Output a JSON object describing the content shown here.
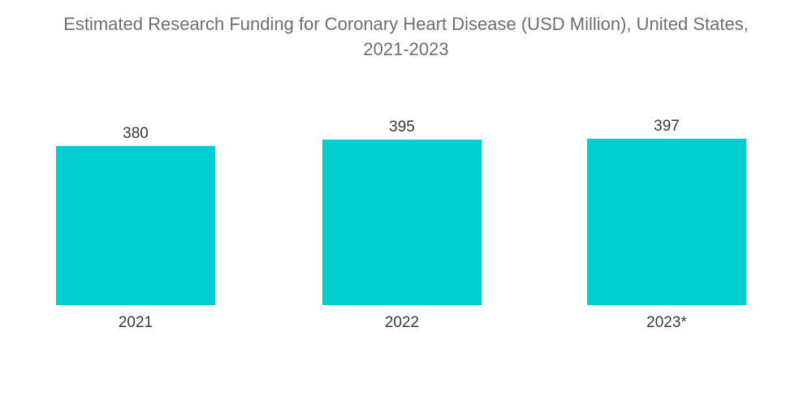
{
  "chart_data": {
    "type": "bar",
    "title_lines": [
      "Estimated Research Funding for Coronary Heart Disease (USD Million), United States,",
      "2021-2023"
    ],
    "categories": [
      "2021",
      "2022",
      "2023*"
    ],
    "values": [
      380,
      395,
      397
    ],
    "data_labels": [
      "380",
      "395",
      "397"
    ],
    "ylim": [
      0,
      397
    ],
    "xlabel": "",
    "ylabel": "",
    "grid": false,
    "legend": "none",
    "bar_color": "#00ced1",
    "text_color": "#3a3a3a",
    "title_color": "#6f6f6f"
  }
}
